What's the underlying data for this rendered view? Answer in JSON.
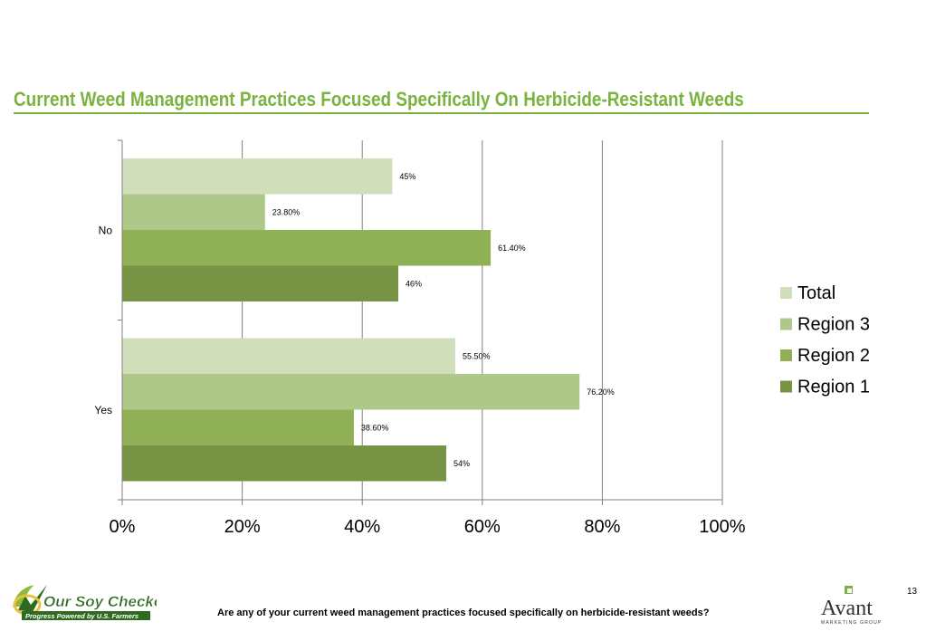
{
  "slide": {
    "title": "Current Weed Management Practices Focused Specifically On Herbicide-Resistant Weeds",
    "question": "Are any of your current weed management practices focused specifically on herbicide-resistant weeds?",
    "page_number": "13"
  },
  "logos": {
    "left_name": "Our Soy Checkoff",
    "left_tagline": "Progress Powered by U.S. Farmers",
    "right_name": "Avant",
    "right_tagline": "MARKETING GROUP"
  },
  "colors": {
    "title": "#7ab33e",
    "Total": "#d0deba",
    "Region 3": "#aec88a",
    "Region 2": "#90b055",
    "Region 1": "#779444",
    "gridline": "#808080"
  },
  "chart_data": {
    "type": "bar",
    "orientation": "horizontal",
    "categories": [
      "No",
      "Yes"
    ],
    "series": [
      {
        "name": "Total",
        "values": [
          45,
          55.5
        ],
        "labels": [
          "45%",
          "55.50%"
        ]
      },
      {
        "name": "Region 3",
        "values": [
          23.8,
          76.2
        ],
        "labels": [
          "23.80%",
          "76.20%"
        ]
      },
      {
        "name": "Region 2",
        "values": [
          61.4,
          38.6
        ],
        "labels": [
          "61.40%",
          "38.60%"
        ]
      },
      {
        "name": "Region 1",
        "values": [
          46,
          54
        ],
        "labels": [
          "46%",
          "54%"
        ]
      }
    ],
    "xlim": [
      0,
      100
    ],
    "x_ticks": [
      "0%",
      "20%",
      "40%",
      "60%",
      "80%",
      "100%"
    ],
    "grid": "vertical",
    "legend": "right"
  }
}
